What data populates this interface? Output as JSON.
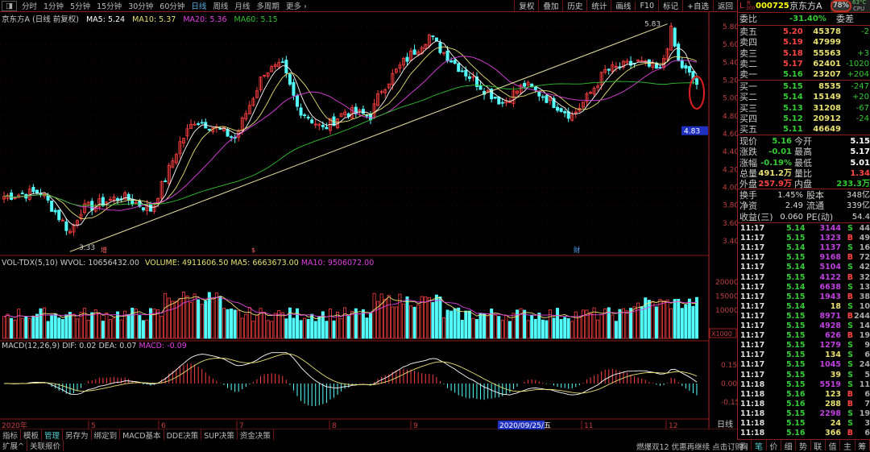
{
  "toolbar": {
    "periods": [
      "分时",
      "1分钟",
      "5分钟",
      "15分钟",
      "30分钟",
      "60分钟",
      "日线",
      "周线",
      "月线",
      "多周期",
      "更多 ›"
    ],
    "active": "日线",
    "buttons": [
      "复权",
      "叠加",
      "历史",
      "统计",
      "画线",
      "F10",
      "标记",
      "+自选",
      "返回"
    ]
  },
  "title": {
    "name": "京东方A (日线 前复权)",
    "ma5": "MA5: 5.24",
    "ma10": "MA10: 5.37",
    "ma20": "MA20: 5.36",
    "ma60": "MA60: 5.15"
  },
  "colors": {
    "up": "#ff4040",
    "down": "#54ffff",
    "ma5": "#ffffff",
    "ma10": "#e8e070",
    "ma20": "#e040e0",
    "ma60": "#30c030",
    "grid": "#8b1a1a"
  },
  "price_axis": [
    "5.80",
    "5.60",
    "5.40",
    "5.20",
    "5.00",
    "4.80",
    "4.60",
    "4.40",
    "4.20",
    "4.00",
    "3.80",
    "3.60",
    "3.40"
  ],
  "current_price_tag": "4.83",
  "annotations": {
    "high": "5.83",
    "low": "3.33",
    "mark1": "增",
    "mark2": "$",
    "mark3": "财"
  },
  "chart_data": {
    "type": "candlestick",
    "note_points": [
      [
        0,
        3.9
      ],
      [
        10,
        3.95
      ],
      [
        18,
        3.5
      ],
      [
        21,
        3.75
      ],
      [
        32,
        3.9
      ],
      [
        40,
        3.75
      ],
      [
        44,
        4.1
      ],
      [
        48,
        4.5
      ],
      [
        52,
        4.75
      ],
      [
        56,
        4.7
      ],
      [
        63,
        4.55
      ],
      [
        71,
        5.3
      ],
      [
        76,
        5.35
      ],
      [
        80,
        4.9
      ],
      [
        87,
        4.65
      ],
      [
        93,
        4.85
      ],
      [
        100,
        4.8
      ],
      [
        103,
        5.1
      ],
      [
        109,
        5.4
      ],
      [
        116,
        5.7
      ],
      [
        119,
        5.55
      ],
      [
        124,
        5.35
      ],
      [
        131,
        5.1
      ],
      [
        136,
        4.95
      ],
      [
        142,
        5.15
      ],
      [
        148,
        5.0
      ],
      [
        155,
        4.8
      ],
      [
        159,
        5.0
      ],
      [
        164,
        5.3
      ],
      [
        173,
        5.4
      ],
      [
        179,
        5.3
      ],
      [
        182,
        5.75
      ],
      [
        184,
        5.4
      ],
      [
        189,
        5.16
      ]
    ],
    "high": 5.83,
    "low": 3.33,
    "yrange": [
      3.3,
      5.9
    ]
  },
  "volume": {
    "header": "VOL-TDX(5,10)",
    "wvol": "WVOL: 10656432.00",
    "volume": "VOLUME: 4911606.50",
    "ma5": "MA5: 6663673.00",
    "ma10": "MA10: 9506072.00",
    "axis": [
      "20000",
      "15000",
      "10000"
    ],
    "unit": "X1000"
  },
  "macd": {
    "header": "MACD(12,26,9)",
    "dif": "DIF: 0.02",
    "dea": "DEA: 0.07",
    "macd": "MACD: -0.09",
    "axis": [
      "0.15",
      "0.00",
      "-0.15"
    ]
  },
  "date_axis": [
    "2020年",
    "5",
    "6",
    "7",
    "8",
    "9",
    "2020/09/25/五",
    "11",
    "12"
  ],
  "period_label": "日线",
  "zoom_plus": "+",
  "zoom_minus": "-",
  "bottom_tabs": [
    "指标",
    "模板",
    "管理",
    "另存为",
    "绑定到",
    "MACD基本",
    "DDE决策",
    "SUP决策",
    "资金决策"
  ],
  "bottom_tabs2": [
    "扩展^",
    "关联报价"
  ],
  "promo": "燃爆双12 优惠再继续 点击订购",
  "quote": {
    "market": "L",
    "r": "R",
    "r300": "300",
    "code": "000725",
    "name": "京东方A",
    "cpu": "78%",
    "temp": "63°C",
    "cpu_label": "CPU",
    "weibi_label": "委比",
    "weibi": "-31.40%",
    "weicha_label": "委差",
    "asks": [
      {
        "l": "卖五",
        "p": "5.20",
        "v": "45378",
        "c": "-2"
      },
      {
        "l": "卖四",
        "p": "5.19",
        "v": "47999",
        "c": ""
      },
      {
        "l": "卖三",
        "p": "5.18",
        "v": "55563",
        "c": "+3"
      },
      {
        "l": "卖二",
        "p": "5.17",
        "v": "62401",
        "c": "-1020"
      },
      {
        "l": "卖一",
        "p": "5.16",
        "v": "23207",
        "c": "+204"
      }
    ],
    "bids": [
      {
        "l": "买一",
        "p": "5.15",
        "v": "8535",
        "c": "-247"
      },
      {
        "l": "买二",
        "p": "5.14",
        "v": "15149",
        "c": "+20"
      },
      {
        "l": "买三",
        "p": "5.13",
        "v": "31208",
        "c": "-67"
      },
      {
        "l": "买四",
        "p": "5.12",
        "v": "20912",
        "c": "-24"
      },
      {
        "l": "买五",
        "p": "5.11",
        "v": "46649",
        "c": ""
      }
    ],
    "stats": [
      [
        "现价",
        "5.16",
        "今开",
        "5.15"
      ],
      [
        "涨跌",
        "-0.01",
        "最高",
        "5.17"
      ],
      [
        "涨幅",
        "-0.19%",
        "最低",
        "5.01"
      ],
      [
        "总量",
        "491.2万",
        "量比",
        "1.34"
      ],
      [
        "外盘",
        "257.9万",
        "内盘",
        "233.3万"
      ]
    ],
    "stats2": [
      [
        "换手",
        "1.45%",
        "股本",
        "348亿"
      ],
      [
        "净资",
        "2.49",
        "流通",
        "339亿"
      ],
      [
        "收益(三)",
        "0.060",
        "PE(动)",
        "54.4"
      ]
    ],
    "ticks": [
      [
        "11:17",
        "5.14",
        "3144",
        "S",
        "44"
      ],
      [
        "11:17",
        "5.15",
        "1323",
        "B",
        "49"
      ],
      [
        "11:17",
        "5.14",
        "1137",
        "S",
        "16"
      ],
      [
        "11:17",
        "5.15",
        "9168",
        "B",
        "72"
      ],
      [
        "11:17",
        "5.14",
        "5104",
        "S",
        "42"
      ],
      [
        "11:17",
        "5.15",
        "4122",
        "B",
        "32"
      ],
      [
        "11:17",
        "5.14",
        "6638",
        "S",
        "13"
      ],
      [
        "11:17",
        "5.15",
        "1943",
        "B",
        "38"
      ],
      [
        "11:17",
        "5.14",
        "18",
        "S",
        "10"
      ],
      [
        "11:17",
        "5.15",
        "8971",
        "B",
        "244"
      ],
      [
        "11:17",
        "5.15",
        "4928",
        "S",
        "14"
      ],
      [
        "11:17",
        "5.15",
        "626",
        "B",
        "19"
      ],
      [
        "11:17",
        "5.15",
        "1279",
        "S",
        "9"
      ],
      [
        "11:17",
        "5.15",
        "134",
        "S",
        "6"
      ],
      [
        "11:17",
        "5.15",
        "1045",
        "S",
        "24"
      ],
      [
        "11:17",
        "5.15",
        "39",
        "S",
        "5"
      ],
      [
        "11:18",
        "5.15",
        "5519",
        "S",
        "11"
      ],
      [
        "11:18",
        "5.16",
        "123",
        "B",
        "6"
      ],
      [
        "11:18",
        "5.16",
        "288",
        "B",
        "7"
      ],
      [
        "11:18",
        "5.15",
        "2298",
        "S",
        "19"
      ],
      [
        "11:18",
        "5.15",
        "24",
        "S",
        "3"
      ],
      [
        "11:18",
        "5.16",
        "366",
        "B",
        "6"
      ]
    ],
    "tabs": [
      "胸",
      "笔",
      "价",
      "细",
      "势",
      "联",
      "值",
      "主",
      "筹"
    ]
  }
}
